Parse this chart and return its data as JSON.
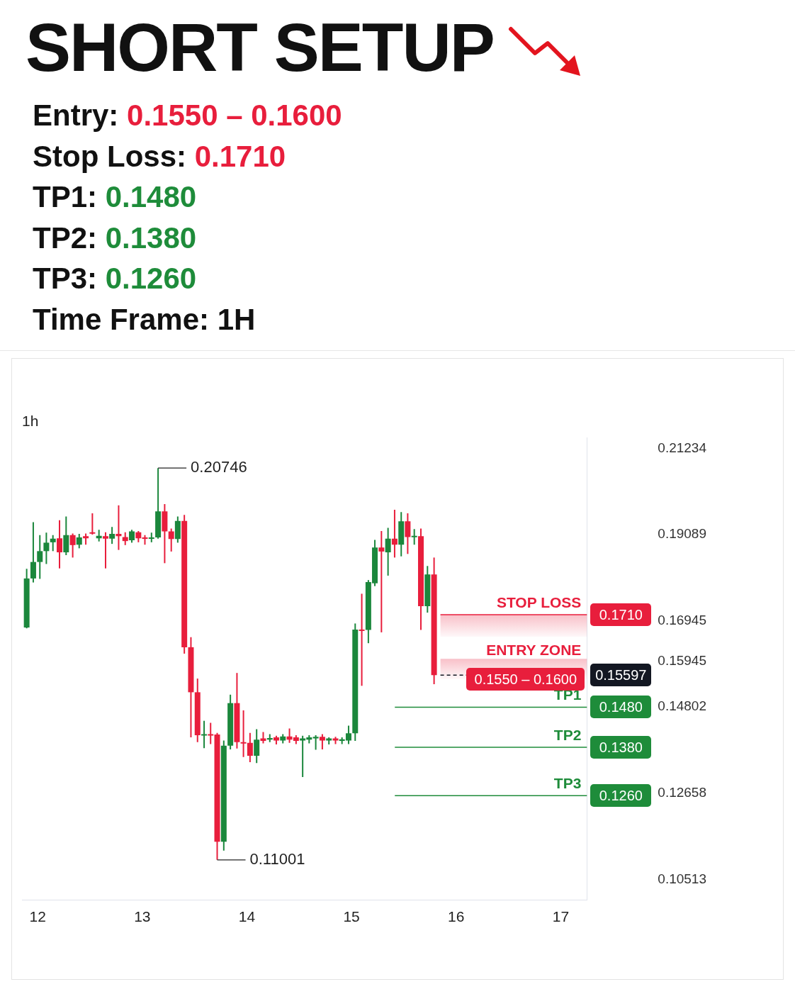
{
  "chart_data": [
    {
      "type": "other",
      "title": "SHORT SETUP",
      "annotations": [
        "Entry: 0.1550 – 0.1600",
        "Stop Loss: 0.1710",
        "TP1: 0.1480",
        "TP2: 0.1380",
        "TP3: 0.1260",
        "Time Frame: 1H"
      ],
      "colors": [
        "#e81e3c",
        "#e81e3c",
        "#1e8c3a",
        "#1e8c3a",
        "#1e8c3a",
        "#111111"
      ]
    },
    {
      "type": "candlestick",
      "title": "1h",
      "x": [
        11.895,
        11.958,
        12.021,
        12.083,
        12.146,
        12.209,
        12.272,
        12.335,
        12.397,
        12.46,
        12.523,
        12.586,
        12.649,
        12.711,
        12.774,
        12.837,
        12.9,
        12.963,
        13.025,
        13.088,
        13.151,
        13.214,
        13.277,
        13.339,
        13.402,
        13.465,
        13.528,
        13.591,
        13.653,
        13.716,
        13.779,
        13.842,
        13.905,
        13.967,
        14.03,
        14.093,
        14.156,
        14.219,
        14.281,
        14.344,
        14.407,
        14.47,
        14.533,
        14.595,
        14.658,
        14.721,
        14.784,
        14.847,
        14.909,
        14.972,
        15.035,
        15.098,
        15.161,
        15.223,
        15.286,
        15.349,
        15.412,
        15.475,
        15.537,
        15.6,
        15.663,
        15.726,
        15.789
      ],
      "ohlc": [
        [
          0.1678,
          0.1824,
          0.1676,
          0.18
        ],
        [
          0.18,
          0.194,
          0.179,
          0.1841
        ],
        [
          0.1841,
          0.1908,
          0.1799,
          0.1868
        ],
        [
          0.1868,
          0.1914,
          0.1836,
          0.1889
        ],
        [
          0.189,
          0.1908,
          0.1868,
          0.1899
        ],
        [
          0.19,
          0.1945,
          0.1825,
          0.1865
        ],
        [
          0.1865,
          0.1954,
          0.1858,
          0.1908
        ],
        [
          0.1908,
          0.1912,
          0.1852,
          0.1883
        ],
        [
          0.1884,
          0.1911,
          0.1875,
          0.1902
        ],
        [
          0.1905,
          0.1912,
          0.1884,
          0.19
        ],
        [
          0.1915,
          0.1962,
          0.1909,
          0.1912
        ],
        [
          0.19,
          0.1921,
          0.1892,
          0.1906
        ],
        [
          0.1905,
          0.1915,
          0.1825,
          0.1899
        ],
        [
          0.1899,
          0.1928,
          0.1886,
          0.1911
        ],
        [
          0.1911,
          0.1982,
          0.1871,
          0.1905
        ],
        [
          0.1903,
          0.1915,
          0.1883,
          0.1893
        ],
        [
          0.1895,
          0.1921,
          0.1889,
          0.1917
        ],
        [
          0.1915,
          0.1918,
          0.189,
          0.19
        ],
        [
          0.1902,
          0.1908,
          0.1884,
          0.1899
        ],
        [
          0.1899,
          0.1914,
          0.189,
          0.1902
        ],
        [
          0.1902,
          0.20746,
          0.1899,
          0.1967
        ],
        [
          0.1967,
          0.1985,
          0.1838,
          0.1917
        ],
        [
          0.1917,
          0.1924,
          0.1867,
          0.1898
        ],
        [
          0.1898,
          0.1954,
          0.1889,
          0.1943
        ],
        [
          0.1943,
          0.1958,
          0.1613,
          0.1629
        ],
        [
          0.1629,
          0.1654,
          0.1405,
          0.1517
        ],
        [
          0.1517,
          0.1551,
          0.1393,
          0.141
        ],
        [
          0.141,
          0.1446,
          0.1378,
          0.1413
        ],
        [
          0.1413,
          0.1441,
          0.1388,
          0.141
        ],
        [
          0.1412,
          0.1416,
          0.11001,
          0.1145
        ],
        [
          0.1145,
          0.1397,
          0.1123,
          0.1384
        ],
        [
          0.1384,
          0.1511,
          0.1375,
          0.149
        ],
        [
          0.149,
          0.1565,
          0.1377,
          0.1393
        ],
        [
          0.1393,
          0.1472,
          0.1356,
          0.139
        ],
        [
          0.1391,
          0.1416,
          0.1343,
          0.1359
        ],
        [
          0.1359,
          0.1425,
          0.1341,
          0.1399
        ],
        [
          0.1402,
          0.1418,
          0.139,
          0.1396
        ],
        [
          0.1399,
          0.1413,
          0.1393,
          0.1403
        ],
        [
          0.1405,
          0.1409,
          0.1387,
          0.1397
        ],
        [
          0.1397,
          0.1413,
          0.139,
          0.1407
        ],
        [
          0.1407,
          0.1427,
          0.1391,
          0.1399
        ],
        [
          0.1405,
          0.141,
          0.1388,
          0.1396
        ],
        [
          0.1397,
          0.1409,
          0.1306,
          0.1402
        ],
        [
          0.1399,
          0.141,
          0.139,
          0.1405
        ],
        [
          0.1402,
          0.141,
          0.1374,
          0.1406
        ],
        [
          0.1406,
          0.1413,
          0.1375,
          0.1397
        ],
        [
          0.1397,
          0.1405,
          0.1387,
          0.1402
        ],
        [
          0.1402,
          0.1406,
          0.1388,
          0.1397
        ],
        [
          0.1396,
          0.1405,
          0.1388,
          0.14
        ],
        [
          0.1397,
          0.1434,
          0.1388,
          0.1415
        ],
        [
          0.1415,
          0.1688,
          0.1396,
          0.1673
        ],
        [
          0.1673,
          0.1762,
          0.1533,
          0.167
        ],
        [
          0.1672,
          0.1796,
          0.1639,
          0.1791
        ],
        [
          0.1788,
          0.1896,
          0.1781,
          0.1877
        ],
        [
          0.1877,
          0.1918,
          0.1666,
          0.1867
        ],
        [
          0.1865,
          0.1926,
          0.1807,
          0.1899
        ],
        [
          0.1899,
          0.1971,
          0.1852,
          0.1884
        ],
        [
          0.1884,
          0.1965,
          0.1855,
          0.1942
        ],
        [
          0.1942,
          0.1962,
          0.1861,
          0.1903
        ],
        [
          0.1903,
          0.1923,
          0.1884,
          0.1906
        ],
        [
          0.1905,
          0.1924,
          0.1672,
          0.1731
        ],
        [
          0.1731,
          0.1831,
          0.1715,
          0.181
        ],
        [
          0.181,
          0.1852,
          0.1537,
          0.15597
        ]
      ],
      "colors": [
        "#1b873c",
        "#1b873c",
        "#1b873c",
        "#1b873c",
        "#1b873c",
        "#e81e3c",
        "#1b873c",
        "#e81e3c",
        "#1b873c",
        "#e81e3c",
        "#e81e3c",
        "#1b873c",
        "#e81e3c",
        "#1b873c",
        "#e81e3c",
        "#e81e3c",
        "#1b873c",
        "#e81e3c",
        "#e81e3c",
        "#1b873c",
        "#1b873c",
        "#e81e3c",
        "#e81e3c",
        "#1b873c",
        "#e81e3c",
        "#e81e3c",
        "#e81e3c",
        "#1b873c",
        "#e81e3c",
        "#e81e3c",
        "#1b873c",
        "#1b873c",
        "#e81e3c",
        "#e81e3c",
        "#e81e3c",
        "#1b873c",
        "#e81e3c",
        "#1b873c",
        "#e81e3c",
        "#1b873c",
        "#e81e3c",
        "#e81e3c",
        "#1b873c",
        "#1b873c",
        "#1b873c",
        "#e81e3c",
        "#1b873c",
        "#e81e3c",
        "#1b873c",
        "#1b873c",
        "#1b873c",
        "#e81e3c",
        "#1b873c",
        "#1b873c",
        "#e81e3c",
        "#1b873c",
        "#e81e3c",
        "#1b873c",
        "#e81e3c",
        "#1b873c",
        "#e81e3c",
        "#1b873c",
        "#e81e3c"
      ],
      "xlim": [
        11.85,
        17.25
      ],
      "xticks": [
        12,
        13,
        14,
        15,
        16,
        17
      ],
      "ylim": [
        0.1,
        0.215
      ],
      "yticks": [
        0.10513,
        0.12658,
        0.14802,
        0.15945,
        0.16945,
        0.19089,
        0.21234
      ],
      "ref_lines": [
        {
          "axis": "y",
          "value": 0.171,
          "label": "STOP LOSS",
          "color": "#e81e3c"
        },
        {
          "axis": "y",
          "value": 0.15597,
          "color": "#131722",
          "line_style": "dashed"
        },
        {
          "axis": "y",
          "value": 0.148,
          "label": "TP1",
          "color": "#1e8c3a"
        },
        {
          "axis": "y",
          "value": 0.138,
          "label": "TP2",
          "color": "#1e8c3a"
        },
        {
          "axis": "y",
          "value": 0.126,
          "label": "TP3",
          "color": "#1e8c3a"
        }
      ],
      "bands": [
        {
          "axis": "y",
          "from": 0.1655,
          "to": 0.171,
          "color": "#e81e3c"
        },
        {
          "axis": "y",
          "from": 0.155,
          "to": 0.16,
          "label": "ENTRY ZONE",
          "color": "#e81e3c"
        }
      ],
      "annotations": [
        {
          "text": "0.20746",
          "x": 13.151,
          "y": 0.20746
        },
        {
          "text": "0.11001",
          "x": 13.716,
          "y": 0.11001
        },
        {
          "text": "0.1710",
          "x": 17.25,
          "y": 0.171
        },
        {
          "text": "0.15597",
          "x": 17.25,
          "y": 0.15597
        },
        {
          "text": "0.1550 – 0.1600",
          "x": 16.75,
          "y": 0.155
        },
        {
          "text": "0.1480",
          "x": 17.25,
          "y": 0.148
        },
        {
          "text": "0.1380",
          "x": 17.25,
          "y": 0.138
        },
        {
          "text": "0.1260",
          "x": 17.25,
          "y": 0.126
        }
      ]
    }
  ]
}
